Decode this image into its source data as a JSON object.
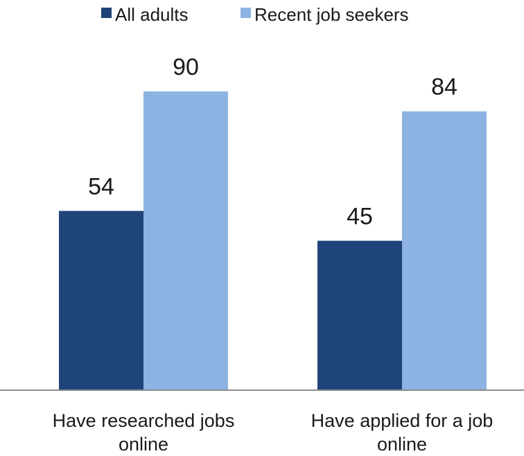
{
  "chart_data": {
    "type": "bar",
    "title": "",
    "xlabel": "",
    "ylabel": "",
    "categories": [
      [
        "Have researched jobs",
        "online"
      ],
      [
        "Have applied for a job",
        "online"
      ]
    ],
    "series": [
      {
        "name": "All adults",
        "values": [
          54,
          45
        ],
        "color": "#1f4479"
      },
      {
        "name": "Recent job seekers",
        "values": [
          90,
          84
        ],
        "color": "#8db3e2"
      }
    ],
    "ylim": [
      0,
      100
    ],
    "grid": false,
    "legend": "top-center"
  }
}
